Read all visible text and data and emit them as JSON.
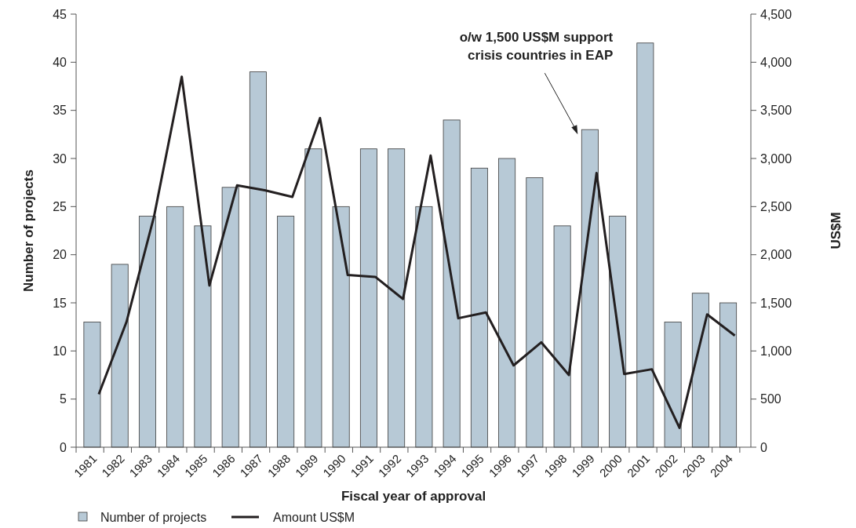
{
  "chart_data": {
    "type": "bar",
    "xlabel": "Fiscal year of approval",
    "ylabel": "Number of projects",
    "y2label": "US$M",
    "categories": [
      "1981",
      "1982",
      "1983",
      "1984",
      "1985",
      "1986",
      "1987",
      "1988",
      "1989",
      "1990",
      "1991",
      "1992",
      "1993",
      "1994",
      "1995",
      "1996",
      "1997",
      "1998",
      "1999",
      "2000",
      "2001",
      "2002",
      "2003",
      "2004"
    ],
    "series": [
      {
        "name": "Number of projects",
        "color": "#b7c9d6",
        "values": [
          13,
          19,
          24,
          25,
          23,
          27,
          39,
          24,
          31,
          25,
          31,
          31,
          25,
          34,
          29,
          30,
          28,
          23,
          33,
          24,
          42,
          13,
          16,
          15
        ]
      },
      {
        "name": "Amount US$M",
        "type": "line",
        "axis": "y2",
        "color": "#231f20",
        "values": [
          550,
          1300,
          2400,
          3850,
          1680,
          2720,
          2670,
          2600,
          3420,
          1790,
          1770,
          1540,
          3030,
          1340,
          1400,
          850,
          1090,
          750,
          2850,
          760,
          810,
          200,
          1380,
          1160
        ]
      }
    ],
    "ylim": [
      0,
      45
    ],
    "yticks": [
      0,
      5,
      10,
      15,
      20,
      25,
      30,
      35,
      40,
      45
    ],
    "y2lim": [
      0,
      4500
    ],
    "y2ticks": [
      {
        "value": 0,
        "label": "0"
      },
      {
        "value": 500,
        "label": "500"
      },
      {
        "value": 1000,
        "label": "1,000"
      },
      {
        "value": 1500,
        "label": "1,500"
      },
      {
        "value": 2000,
        "label": "2,000"
      },
      {
        "value": 2500,
        "label": "2,500"
      },
      {
        "value": 3000,
        "label": "3,000"
      },
      {
        "value": 3500,
        "label": "3,500"
      },
      {
        "value": 4000,
        "label": "4,000"
      },
      {
        "value": 4500,
        "label": "4,500"
      }
    ],
    "annotations": [
      "o/w 1,500 US$M support\ncrisis countries in EAP"
    ],
    "legend": "bottom left",
    "grid": false
  }
}
